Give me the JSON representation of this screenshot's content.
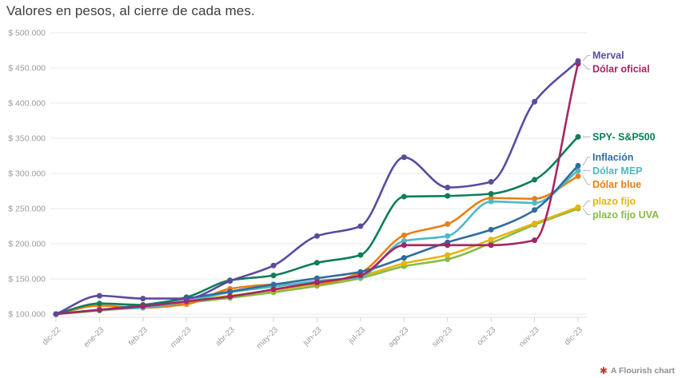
{
  "header": {
    "title": "Valores en pesos, al cierre de cada mes."
  },
  "chart_data": {
    "type": "line",
    "title": "Valores en pesos, al cierre de cada mes.",
    "xlabel": "",
    "ylabel": "",
    "ylim": [
      100000,
      500000
    ],
    "grid": "horizontal-only",
    "legend_position": "direct-labels-right",
    "marker": "circle",
    "curve": "monotone",
    "categories": [
      "dic-22",
      "ene-23",
      "feb-23",
      "mar-23",
      "abr-23",
      "may-23",
      "jun-23",
      "jul-23",
      "ago-23",
      "sep-23",
      "oct-23",
      "nov-23",
      "dic-23"
    ],
    "y_ticks": [
      {
        "value": 100000,
        "label": "$ 100.000"
      },
      {
        "value": 150000,
        "label": "$ 150.000"
      },
      {
        "value": 200000,
        "label": "$ 200.000"
      },
      {
        "value": 250000,
        "label": "$ 250.000"
      },
      {
        "value": 300000,
        "label": "$ 300.000"
      },
      {
        "value": 350000,
        "label": "$ 350.000"
      },
      {
        "value": 400000,
        "label": "$ 400.000"
      },
      {
        "value": 450000,
        "label": "$ 450.000"
      },
      {
        "value": 500000,
        "label": "$ 500.000"
      }
    ],
    "series": [
      {
        "name": "Merval",
        "color": "#5c4a9e",
        "values": [
          100000,
          126000,
          122000,
          122000,
          147000,
          169000,
          211000,
          225000,
          323000,
          280000,
          288000,
          402000,
          460000
        ]
      },
      {
        "name": "Dólar oficial",
        "color": "#a52566",
        "values": [
          100000,
          106000,
          111000,
          118000,
          125000,
          135000,
          145000,
          155000,
          198000,
          198000,
          198000,
          205000,
          456000
        ]
      },
      {
        "name": "SPY- S&P500",
        "color": "#0e7d5a",
        "values": [
          100000,
          115000,
          113000,
          124000,
          148000,
          155000,
          173000,
          184000,
          267000,
          268000,
          271000,
          291000,
          352000
        ]
      },
      {
        "name": "Inflación",
        "color": "#2e6d9e",
        "values": [
          100000,
          106000,
          113000,
          122000,
          132000,
          142000,
          151000,
          160000,
          180000,
          202000,
          220000,
          248000,
          311000
        ]
      },
      {
        "name": "Dólar MEP",
        "color": "#4cb9c6",
        "values": [
          100000,
          106000,
          109000,
          118000,
          131000,
          139000,
          147000,
          153000,
          204000,
          211000,
          260000,
          258000,
          304000
        ]
      },
      {
        "name": "Dólar blue",
        "color": "#ea7e12",
        "values": [
          100000,
          112000,
          109000,
          114000,
          136000,
          142000,
          143000,
          159000,
          212000,
          228000,
          265000,
          264000,
          296000
        ]
      },
      {
        "name": "plazo fijo",
        "color": "#e6b40a",
        "values": [
          100000,
          106000,
          112000,
          118000,
          126000,
          134000,
          143000,
          154000,
          172000,
          184000,
          206000,
          229000,
          252000
        ]
      },
      {
        "name": "plazo fijo UVA",
        "color": "#85bb47",
        "values": [
          100000,
          105000,
          110000,
          116000,
          123000,
          131000,
          140000,
          151000,
          168000,
          178000,
          201000,
          227000,
          250000
        ]
      }
    ]
  },
  "footer": {
    "attribution": "A Flourish chart",
    "logo_icon": "flourish-flower-icon",
    "logo_color": "#cf2d2d",
    "logo_glyph": "✱"
  },
  "style_colors": {
    "title_text": "#3d3d3d",
    "axis_text": "#9b9b9b",
    "gridline": "#e9e9e9",
    "axis_line": "#e0e0e0",
    "tick_mark": "#d5d5d5",
    "leader_line": "#b3b3b3",
    "background": "#ffffff"
  }
}
